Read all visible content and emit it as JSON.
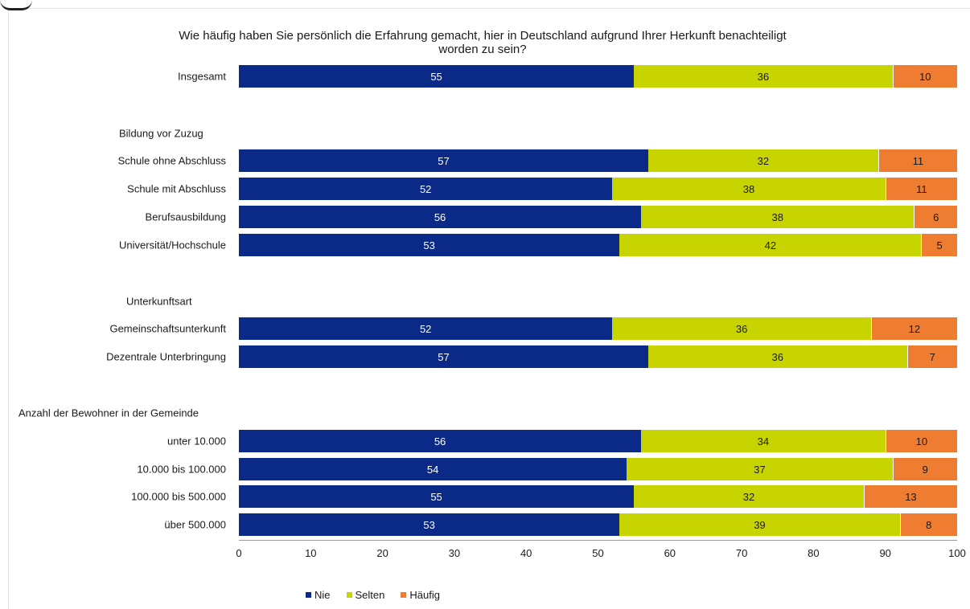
{
  "colors": {
    "nie": "#0b2a88",
    "selten": "#c8d400",
    "haeufig": "#ee7d31"
  },
  "chart_data": {
    "type": "bar",
    "orientation": "horizontal",
    "stacked": true,
    "title_line1": "Wie häufig haben Sie persönlich die Erfahrung gemacht, hier in Deutschland aufgrund Ihrer Herkunft benachteiligt",
    "title_line2": "worden zu sein?",
    "xlabel": "",
    "ylabel": "",
    "xlim": [
      0,
      100
    ],
    "ticks": [
      "0",
      "10",
      "20",
      "30",
      "40",
      "50",
      "60",
      "70",
      "80",
      "90",
      "100"
    ],
    "legend_position": "bottom",
    "legend": [
      "Nie",
      "Selten",
      "Häufig"
    ],
    "groups": [
      "Bildung vor Zuzug",
      "Unterkunftsart",
      "Anzahl der Bewohner in der Gemeinde"
    ],
    "categories": [
      "Insgesamt",
      "Schule ohne Abschluss",
      "Schule mit Abschluss",
      "Berufsausbildung",
      "Universität/Hochschule",
      "Gemeinschaftsunterkunft",
      "Dezentrale Unterbringung",
      "unter 10.000",
      "10.000 bis 100.000",
      "100.000 bis 500.000",
      "über 500.000"
    ],
    "series": [
      {
        "name": "Nie",
        "values": [
          55,
          57,
          52,
          56,
          53,
          52,
          57,
          56,
          54,
          55,
          53
        ]
      },
      {
        "name": "Selten",
        "values": [
          36,
          32,
          38,
          38,
          42,
          36,
          36,
          34,
          37,
          32,
          39
        ]
      },
      {
        "name": "Häufig",
        "values": [
          10,
          11,
          11,
          6,
          5,
          12,
          7,
          10,
          9,
          13,
          8
        ]
      }
    ]
  }
}
